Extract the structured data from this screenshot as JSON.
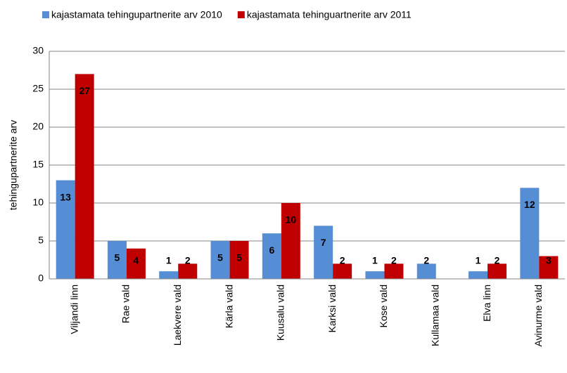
{
  "chart_data": {
    "type": "bar",
    "y_label": "tehingupartnerite arv",
    "categories": [
      "Viljandi linn",
      "Rae vald",
      "Laekvere vald",
      "Kärla vald",
      "Kuusalu vald",
      "Karksi vald",
      "Kose vald",
      "Kullamaa vald",
      "Elva linn",
      "Avinurme vald"
    ],
    "series": [
      {
        "name": "kajastamata tehingupartnerite arv 2010",
        "color": "#558ed5",
        "values": [
          13,
          5,
          1,
          5,
          6,
          7,
          1,
          2,
          1,
          12
        ]
      },
      {
        "name": "kajastamata tehinguartnerite arv 2011",
        "color": "#c00000",
        "values": [
          27,
          4,
          2,
          5,
          10,
          2,
          2,
          null,
          2,
          3
        ]
      }
    ],
    "ylim": [
      0,
      30
    ],
    "yticks": [
      0,
      5,
      10,
      15,
      20,
      25,
      30
    ],
    "grid": true,
    "legend": "top"
  }
}
